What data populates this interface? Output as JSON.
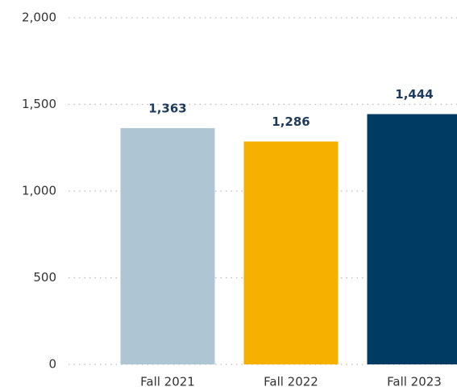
{
  "chart_data": {
    "type": "bar",
    "categories": [
      "Fall 2021",
      "Fall 2022",
      "Fall 2023"
    ],
    "values": [
      1363,
      1286,
      1444
    ],
    "value_labels": [
      "1,363",
      "1,286",
      "1,444"
    ],
    "colors": [
      "#aec6d4",
      "#f5b000",
      "#003b63"
    ],
    "ylim": [
      0,
      2000
    ],
    "yticks": [
      0,
      {
        "value": 500,
        "label": "500"
      },
      {
        "value": 1000,
        "label": "1,000"
      },
      {
        "value": 1500,
        "label": "1,500"
      },
      {
        "value": 2000,
        "label": "2,000"
      }
    ],
    "grid": true
  }
}
